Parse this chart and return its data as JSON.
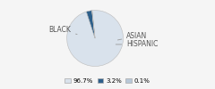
{
  "slices": [
    96.7,
    3.2,
    0.1
  ],
  "labels": [
    "BLACK",
    "ASIAN",
    "HISPANIC"
  ],
  "colors": [
    "#d9e2ec",
    "#2d5f8a",
    "#b8c8d8"
  ],
  "legend_labels": [
    "96.7%",
    "3.2%",
    "0.1%"
  ],
  "startangle": 96,
  "background_color": "#f5f5f5"
}
